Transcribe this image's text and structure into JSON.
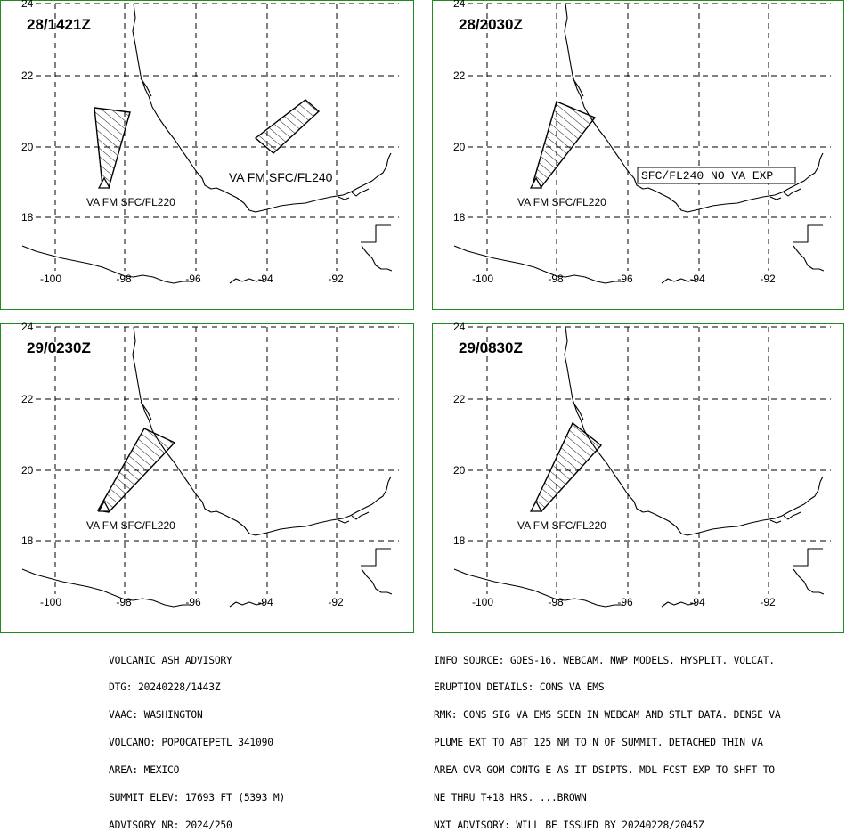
{
  "panels": [
    {
      "id": "p1",
      "time": "28/1421Z",
      "labels": [
        "VA FM SFC/FL220",
        "VA FM SFC/FL240"
      ],
      "box_label": ""
    },
    {
      "id": "p2",
      "time": "28/2030Z",
      "labels": [
        "VA FM SFC/FL220"
      ],
      "box_label": "SFC/FL240 NO VA EXP"
    },
    {
      "id": "p3",
      "time": "29/0230Z",
      "labels": [
        "VA FM SFC/FL220"
      ],
      "box_label": ""
    },
    {
      "id": "p4",
      "time": "29/0830Z",
      "labels": [
        "VA FM SFC/FL220"
      ],
      "box_label": ""
    }
  ],
  "axes": {
    "lon_ticks": [
      "-100",
      "-98",
      "-96",
      "-94",
      "-92"
    ],
    "lat_ticks": [
      "24",
      "22",
      "20",
      "18"
    ]
  },
  "map_extent": {
    "lon": [
      -101,
      -90.5
    ],
    "lat": [
      16.5,
      24
    ]
  },
  "colors": {
    "frame": "#1e8c1e",
    "lines": "#000000"
  },
  "advisory_left": [
    "VOLCANIC ASH ADVISORY",
    "DTG: 20240228/1443Z",
    "VAAC: WASHINGTON",
    "VOLCANO: POPOCATEPETL 341090",
    "AREA: MEXICO",
    "SUMMIT ELEV: 17693 FT (5393 M)",
    "ADVISORY NR: 2024/250"
  ],
  "advisory_right": [
    "INFO SOURCE: GOES-16. WEBCAM. NWP MODELS. HYSPLIT. VOLCAT.",
    "ERUPTION DETAILS: CONS VA EMS",
    "RMK: CONS SIG VA EMS SEEN IN WEBCAM AND STLT DATA. DENSE VA",
    "PLUME EXT TO ABT 125 NM TO N OF SUMMIT. DETACHED THIN VA",
    "AREA OVR GOM CONTG E AS IT DSIPTS. MDL FCST EXP TO SHFT TO",
    "NE THRU T+18 HRS. ...BROWN",
    "NXT ADVISORY: WILL BE ISSUED BY 20240228/2045Z"
  ]
}
